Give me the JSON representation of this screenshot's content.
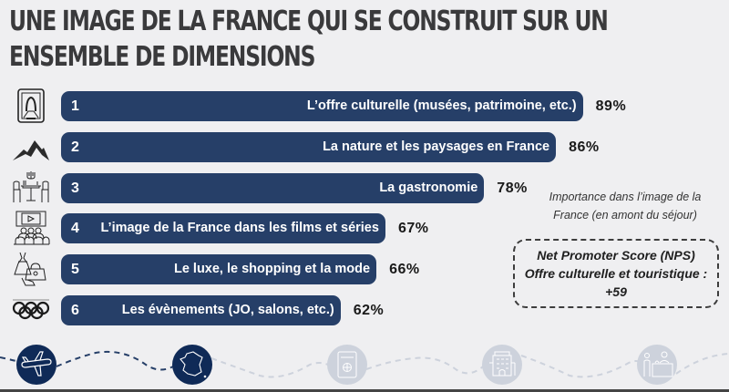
{
  "header": {
    "title_line1": "Une image de la France qui se construit sur un",
    "title_line2": "ensemble de dimensions"
  },
  "chart_data": {
    "type": "bar",
    "orientation": "horizontal",
    "title": "Une image de la France qui se construit sur un ensemble de dimensions",
    "xlabel": "",
    "ylabel": "",
    "xlim": [
      0,
      100
    ],
    "unit": "%",
    "grid": false,
    "categories": [
      "L’offre culturelle (musées, patrimoine, etc.)",
      "La nature et les paysages en France",
      "La gastronomie",
      "L’image de la France dans les films et séries",
      "Le luxe, le shopping et la mode",
      "Les évènements (JO, salons, etc.)"
    ],
    "ranks": [
      "1",
      "2",
      "3",
      "4",
      "5",
      "6"
    ],
    "values": [
      89,
      86,
      78,
      67,
      66,
      62
    ],
    "value_labels": [
      "89%",
      "86%",
      "78%",
      "67%",
      "66%",
      "62%"
    ],
    "icons": [
      "portrait-frame-icon",
      "mountain-icon",
      "dining-table-icon",
      "cinema-audience-icon",
      "fashion-shopping-icon",
      "olympic-rings-icon"
    ],
    "annotation": "Importance dans l’image de la France (en amont du séjour)",
    "bar_color": "#263f68"
  },
  "note": {
    "text": "Importance dans l’image de la France (en amont du séjour)"
  },
  "nps": {
    "line1": "Net Promoter Score (NPS)",
    "line2": "Offre culturelle et touristique :",
    "value": "+59"
  },
  "timeline": {
    "steps": [
      {
        "icon": "airplane-icon",
        "active": true
      },
      {
        "icon": "france-map-icon",
        "active": true
      },
      {
        "icon": "passport-icon",
        "active": false
      },
      {
        "icon": "hotel-icon",
        "active": false
      },
      {
        "icon": "reception-desk-icon",
        "active": false
      }
    ],
    "active_color": "#0f2a57",
    "inactive_color": "#cdd2dc"
  }
}
